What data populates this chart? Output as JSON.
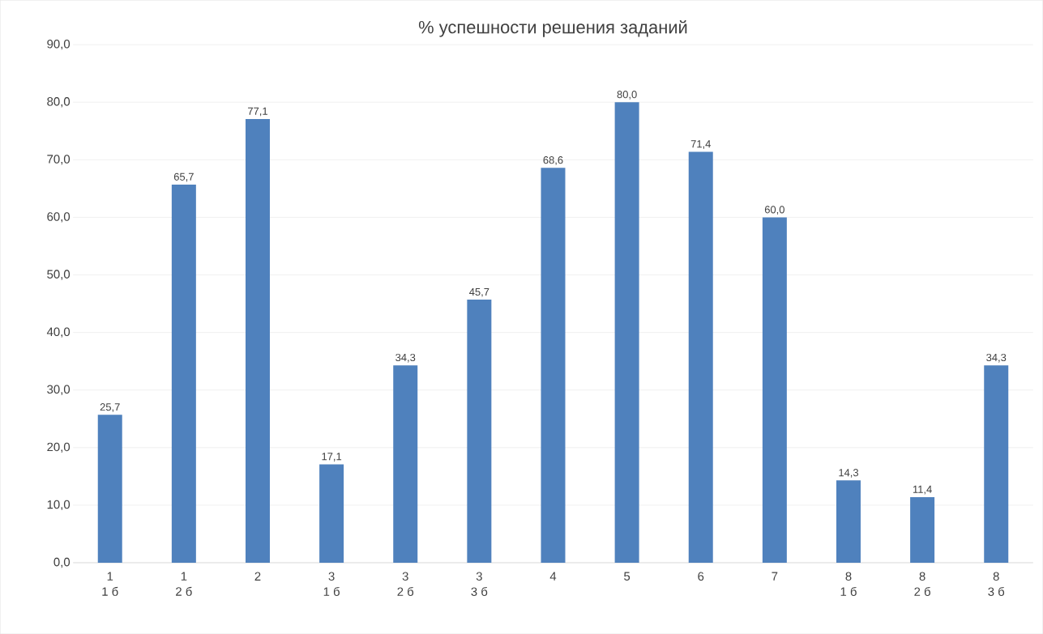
{
  "chart_data": {
    "type": "bar",
    "title": "% успешности решения заданий",
    "categories": [
      "1\n1 б",
      "1\n2 б",
      "2",
      "3\n1 б",
      "3\n2 б",
      "3\n3 б",
      "4",
      "5",
      "6",
      "7",
      "8\n1 б",
      "8\n2 б",
      "8\n3 б"
    ],
    "values": [
      25.7,
      65.7,
      77.1,
      17.1,
      34.3,
      45.7,
      68.6,
      80.0,
      71.4,
      60.0,
      14.3,
      11.4,
      34.3
    ],
    "value_labels": [
      "25,7",
      "65,7",
      "77,1",
      "17,1",
      "34,3",
      "45,7",
      "68,6",
      "80,0",
      "71,4",
      "60,0",
      "14,3",
      "11,4",
      "34,3"
    ],
    "color": "#4f81bd",
    "ylim": [
      0,
      90
    ],
    "yticks": [
      {
        "value": 0,
        "label": "0,0"
      },
      {
        "value": 10,
        "label": "10,0"
      },
      {
        "value": 20,
        "label": "20,0"
      },
      {
        "value": 30,
        "label": "30,0"
      },
      {
        "value": 40,
        "label": "40,0"
      },
      {
        "value": 50,
        "label": "50,0"
      },
      {
        "value": 60,
        "label": "60,0"
      },
      {
        "value": 70,
        "label": "70,0"
      },
      {
        "value": 80,
        "label": "80,0"
      },
      {
        "value": 90,
        "label": "90,0"
      }
    ],
    "grid": "y"
  }
}
